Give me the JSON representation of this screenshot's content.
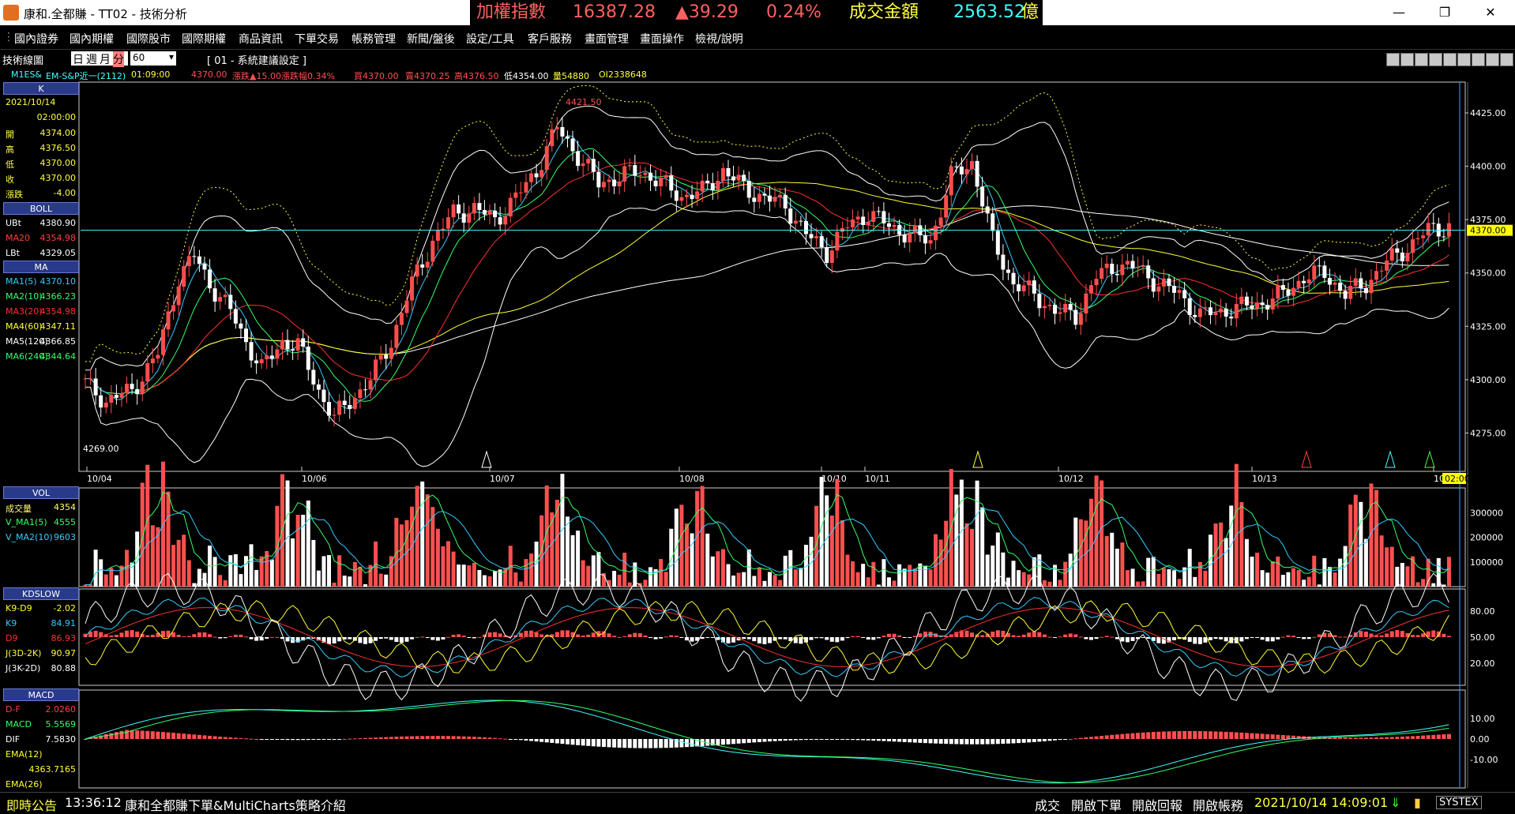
{
  "window": {
    "title": "康和.全都賺 - TT02 - 技術分析",
    "minimize_glyph": "—",
    "maximize_glyph": "❐",
    "close_glyph": "✕"
  },
  "ticker": {
    "index_label": "加權指數",
    "index_value": "16387.28",
    "change": "▲39.29",
    "change_pct": "0.24%",
    "turnover_label": "成交金額",
    "turnover_value": "2563.52",
    "turnover_unit": "億"
  },
  "menu": [
    "國內證券",
    "國內期權",
    "國際股市",
    "國際期權",
    "商品資訊",
    "下單交易",
    "帳務管理",
    "新聞/盤後",
    "設定/工具",
    "客戶服務",
    "畫面管理",
    "畫面操作",
    "檢視/說明"
  ],
  "toolbar": {
    "label": "技術線圖",
    "periods": [
      "日",
      "週",
      "月",
      "分"
    ],
    "minutes_value": "60",
    "setting": "[ 01 - 系統建議設定 ]"
  },
  "quote_line": {
    "symbol": "M1ES&",
    "name": "EM-S&P近一(2112)",
    "time": "01:09:00",
    "price": "4370.00",
    "change": "漲跌▲15.00",
    "change_pct": "漲跌幅0.34%",
    "bid": "買4370.00",
    "ask": "賣4370.25",
    "high": "高4376.50",
    "low": "低4354.00",
    "volume": "量54880",
    "oi": "OI2338648"
  },
  "left_panel": {
    "k_header": "K",
    "date": "2021/10/14",
    "time": "02:00:00",
    "ohlc": [
      {
        "label": "開",
        "value": "4374.00"
      },
      {
        "label": "高",
        "value": "4376.50"
      },
      {
        "label": "低",
        "value": "4370.00"
      },
      {
        "label": "收",
        "value": "4370.00"
      },
      {
        "label": "漲跌",
        "value": "-4.00"
      }
    ],
    "boll_header": "BOLL",
    "boll": [
      {
        "label": "UBt",
        "value": "4380.90",
        "color": "#ffffff"
      },
      {
        "label": "MA20",
        "value": "4354.98",
        "color": "#ff4040"
      },
      {
        "label": "LBt",
        "value": "4329.05",
        "color": "#ffffff"
      }
    ],
    "ma_header": "MA",
    "ma": [
      {
        "label": "MA1(5)",
        "value": "4370.10",
        "color": "#33ccff"
      },
      {
        "label": "MA2(10)",
        "value": "4366.23",
        "color": "#33ff66"
      },
      {
        "label": "MA3(20)",
        "value": "4354.98",
        "color": "#ff3030"
      },
      {
        "label": "MA4(60)",
        "value": "4347.11",
        "color": "#ffff33"
      },
      {
        "label": "MA5(120)",
        "value": "4366.85",
        "color": "#ffffff"
      },
      {
        "label": "MA6(240)",
        "value": "4344.64",
        "color": "#33ff66"
      }
    ],
    "vol_header": "VOL",
    "vol": [
      {
        "label": "成交量",
        "value": "4354",
        "color": "#ffff66"
      },
      {
        "label": "V_MA1(5)",
        "value": "4555",
        "color": "#33ff66"
      },
      {
        "label": "V_MA2(10)",
        "value": "9603",
        "color": "#33ccff"
      }
    ],
    "kd_header": "KDSLOW",
    "kd": [
      {
        "label": "K9-D9",
        "value": "-2.02",
        "color": "#ffff33"
      },
      {
        "label": "K9",
        "value": "84.91",
        "color": "#33ccff"
      },
      {
        "label": "D9",
        "value": "86.93",
        "color": "#ff3030"
      },
      {
        "label": "J(3D-2K)",
        "value": "90.97",
        "color": "#ffff33"
      },
      {
        "label": "J(3K-2D)",
        "value": "80.88",
        "color": "#ffffff"
      }
    ],
    "macd_header": "MACD",
    "macd": [
      {
        "label": "D-F",
        "value": "2.0260",
        "color": "#ff4040"
      },
      {
        "label": "MACD",
        "value": "5.5569",
        "color": "#33ff66"
      },
      {
        "label": "DIF",
        "value": "7.5830",
        "color": "#ffffff"
      },
      {
        "label": "EMA(12)",
        "value": "",
        "color": "#ffff33"
      },
      {
        "label": "",
        "value": "4363.7165",
        "color": "#ffff33"
      },
      {
        "label": "EMA(26)",
        "value": "",
        "color": "#ffff33"
      }
    ]
  },
  "price_axis": [
    "4425.00",
    "4400.00",
    "4375.00",
    "4350.00",
    "4325.00",
    "4300.00",
    "4275.00"
  ],
  "price_current_label": "4370.00",
  "price_annotations": {
    "high": "4421.50",
    "low": "4269.00"
  },
  "date_axis": [
    "10/04",
    "10/06",
    "10/07",
    "10/08",
    "10/10",
    "10/11",
    "10/12",
    "10/13",
    "10/14"
  ],
  "time_marker": "02:00",
  "vol_axis": [
    "300000",
    "200000",
    "100000"
  ],
  "kd_axis": [
    "80.00",
    "50.00",
    "20.00"
  ],
  "macd_axis": [
    "10.00",
    "0.00",
    "-10.00"
  ],
  "chart_data": {
    "type": "candlestick",
    "symbol": "EM-S&P近一(2112)",
    "interval_minutes": 60,
    "ylim": [
      4260,
      4435
    ],
    "colors": {
      "up": "#ff4d4d",
      "down": "#ffffff",
      "ma5": "#33ccff",
      "ma10": "#33ff66",
      "ma20": "#ff3030",
      "ma60": "#ffff33",
      "ma120": "#ffffff"
    },
    "pivots": [
      [
        0,
        4298
      ],
      [
        4,
        4290
      ],
      [
        9,
        4295
      ],
      [
        14,
        4312
      ],
      [
        18,
        4348
      ],
      [
        21,
        4358
      ],
      [
        24,
        4345
      ],
      [
        28,
        4332
      ],
      [
        31,
        4318
      ],
      [
        34,
        4305
      ],
      [
        38,
        4318
      ],
      [
        41,
        4316
      ],
      [
        45,
        4295
      ],
      [
        48,
        4282
      ],
      [
        51,
        4290
      ],
      [
        55,
        4300
      ],
      [
        59,
        4318
      ],
      [
        63,
        4345
      ],
      [
        67,
        4365
      ],
      [
        71,
        4378
      ],
      [
        75,
        4380
      ],
      [
        79,
        4375
      ],
      [
        83,
        4385
      ],
      [
        87,
        4398
      ],
      [
        91,
        4418
      ],
      [
        95,
        4405
      ],
      [
        99,
        4392
      ],
      [
        103,
        4395
      ],
      [
        107,
        4398
      ],
      [
        111,
        4392
      ],
      [
        115,
        4386
      ],
      [
        119,
        4388
      ],
      [
        123,
        4398
      ],
      [
        127,
        4390
      ],
      [
        131,
        4385
      ],
      [
        135,
        4382
      ],
      [
        139,
        4368
      ],
      [
        143,
        4360
      ],
      [
        147,
        4372
      ],
      [
        151,
        4378
      ],
      [
        155,
        4372
      ],
      [
        159,
        4368
      ],
      [
        163,
        4365
      ],
      [
        167,
        4395
      ],
      [
        171,
        4402
      ],
      [
        175,
        4365
      ],
      [
        179,
        4345
      ],
      [
        183,
        4340
      ],
      [
        187,
        4332
      ],
      [
        191,
        4330
      ],
      [
        195,
        4348
      ],
      [
        199,
        4354
      ],
      [
        203,
        4352
      ],
      [
        207,
        4345
      ],
      [
        211,
        4340
      ],
      [
        215,
        4330
      ],
      [
        219,
        4332
      ],
      [
        223,
        4334
      ],
      [
        227,
        4336
      ],
      [
        231,
        4340
      ],
      [
        235,
        4348
      ],
      [
        239,
        4350
      ],
      [
        243,
        4340
      ],
      [
        247,
        4345
      ],
      [
        251,
        4355
      ],
      [
        255,
        4362
      ],
      [
        259,
        4370
      ],
      [
        263,
        4372
      ]
    ]
  }
}
